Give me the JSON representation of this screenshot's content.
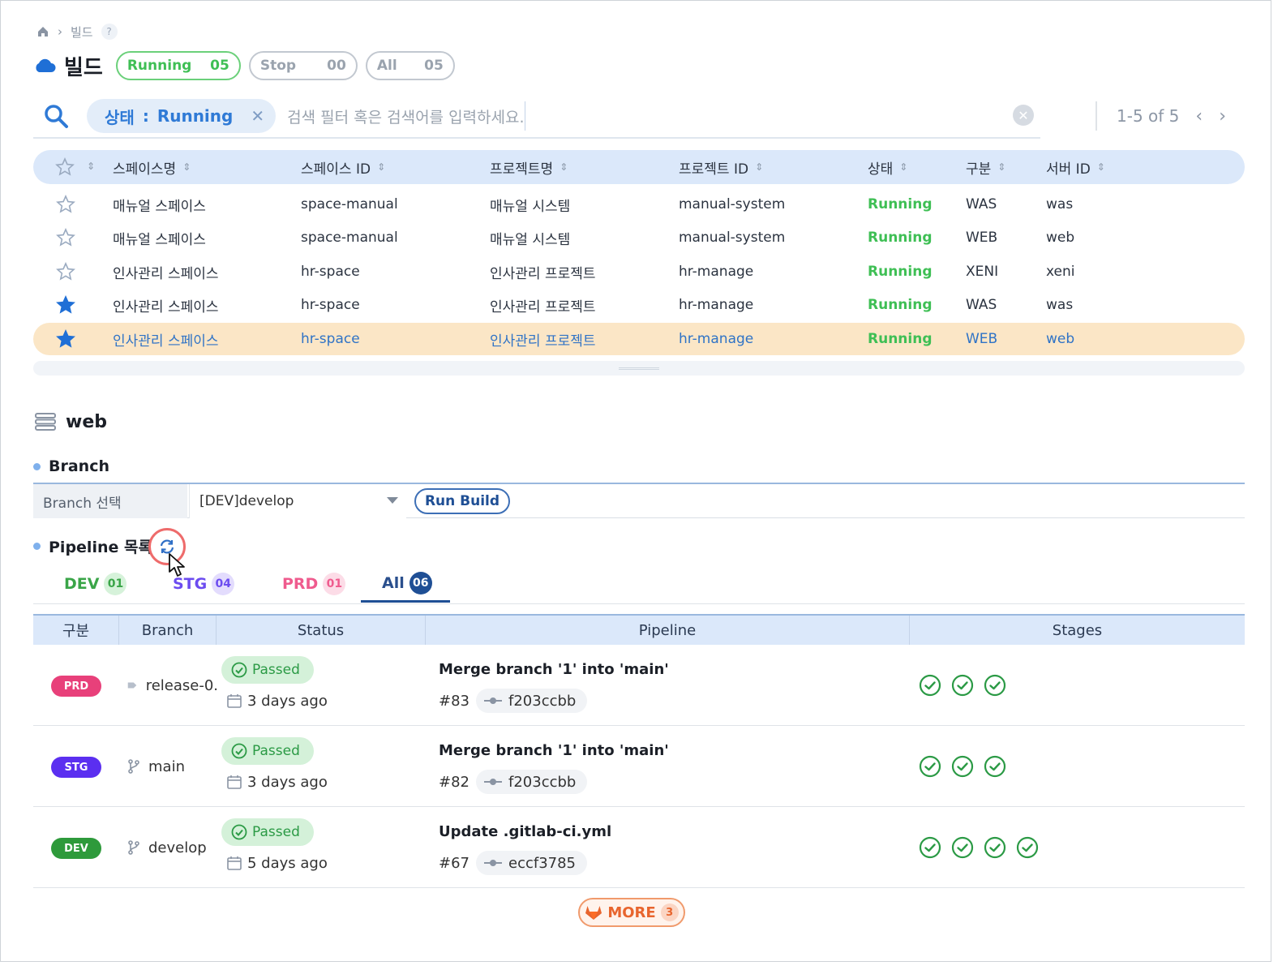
{
  "breadcrumb": {
    "current": "빌드",
    "help": "?"
  },
  "title": "빌드",
  "status_pills": [
    {
      "label": "Running",
      "count": "05"
    },
    {
      "label": "Stop",
      "count": "00"
    },
    {
      "label": "All",
      "count": "05"
    }
  ],
  "search": {
    "chip_key": "상태",
    "chip_sep": ":",
    "chip_value": "Running",
    "placeholder": "검색 필터 혹은 검색어를 입력하세요."
  },
  "pager": {
    "range": "1-5 of 5"
  },
  "table": {
    "columns": [
      "스페이스명",
      "스페이스 ID",
      "프로젝트명",
      "프로젝트 ID",
      "상태",
      "구분",
      "서버 ID"
    ],
    "rows": [
      {
        "starred": false,
        "selected": false,
        "cells": [
          "매뉴얼 스페이스",
          "space-manual",
          "매뉴얼 시스템",
          "manual-system",
          "Running",
          "WAS",
          "was"
        ]
      },
      {
        "starred": false,
        "selected": false,
        "cells": [
          "매뉴얼 스페이스",
          "space-manual",
          "매뉴얼 시스템",
          "manual-system",
          "Running",
          "WEB",
          "web"
        ]
      },
      {
        "starred": false,
        "selected": false,
        "cells": [
          "인사관리 스페이스",
          "hr-space",
          "인사관리 프로젝트",
          "hr-manage",
          "Running",
          "XENI",
          "xeni"
        ]
      },
      {
        "starred": true,
        "selected": false,
        "cells": [
          "인사관리 스페이스",
          "hr-space",
          "인사관리 프로젝트",
          "hr-manage",
          "Running",
          "WAS",
          "was"
        ]
      },
      {
        "starred": true,
        "selected": true,
        "cells": [
          "인사관리 스페이스",
          "hr-space",
          "인사관리 프로젝트",
          "hr-manage",
          "Running",
          "WEB",
          "web"
        ]
      }
    ]
  },
  "detail": {
    "server_title": "web",
    "branch_section": "Branch",
    "branch_label": "Branch 선택",
    "branch_value": "[DEV]develop",
    "run_build": "Run Build",
    "pipeline_section": "Pipeline 목록"
  },
  "tabs": [
    {
      "label": "DEV",
      "count": "01",
      "color": "#3aa548",
      "bg": "#d6f2da"
    },
    {
      "label": "STG",
      "count": "04",
      "color": "#6c4cf0",
      "bg": "#e3dcfd"
    },
    {
      "label": "PRD",
      "count": "01",
      "color": "#ef5b8e",
      "bg": "#fcdce7"
    },
    {
      "label": "All",
      "count": "06",
      "color": "#2a4f8d",
      "bg": "#1f4f95"
    }
  ],
  "pipelines": {
    "columns": [
      "구분",
      "Branch",
      "Status",
      "Pipeline",
      "Stages"
    ],
    "rows": [
      {
        "env": "PRD",
        "env_color": "#e8407a",
        "branch_icon": "tag-icon",
        "branch": "release-0.",
        "status": "Passed",
        "ago": "3 days ago",
        "title": "Merge branch '1' into 'main'",
        "number": "#83",
        "sha": "f203ccbb",
        "stages": 3
      },
      {
        "env": "STG",
        "env_color": "#5b2ff0",
        "branch_icon": "branch-icon",
        "branch": "main",
        "status": "Passed",
        "ago": "3 days ago",
        "title": "Merge branch '1' into 'main'",
        "number": "#82",
        "sha": "f203ccbb",
        "stages": 3
      },
      {
        "env": "DEV",
        "env_color": "#2e9a3b",
        "branch_icon": "branch-icon",
        "branch": "develop",
        "status": "Passed",
        "ago": "5 days ago",
        "title": "Update .gitlab-ci.yml",
        "number": "#67",
        "sha": "eccf3785",
        "stages": 4
      }
    ]
  },
  "more": {
    "label": "MORE",
    "count": "3"
  }
}
